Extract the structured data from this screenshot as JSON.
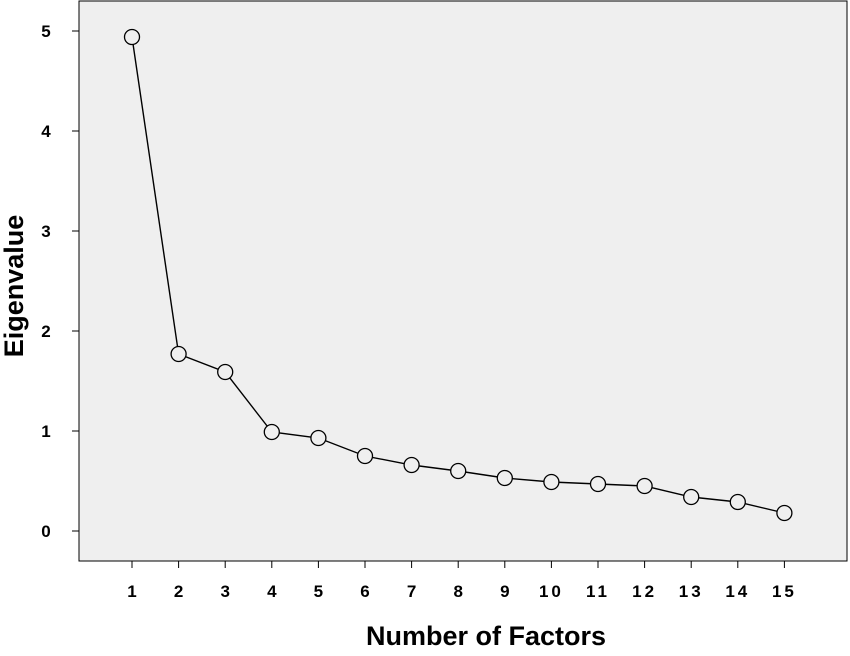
{
  "chart_data": {
    "type": "line",
    "title": "",
    "xlabel": "Number of Factors",
    "ylabel": "Eigenvalue",
    "x": [
      1,
      2,
      3,
      4,
      5,
      6,
      7,
      8,
      9,
      10,
      11,
      12,
      13,
      14,
      15
    ],
    "x_tick_labels": [
      "1",
      "2",
      "3",
      "4",
      "5",
      "6",
      "7",
      "8",
      "9",
      "10",
      "11",
      "12",
      "13",
      "14",
      "15"
    ],
    "y_ticks": [
      0,
      1,
      2,
      3,
      4,
      5
    ],
    "y_tick_labels": [
      "0",
      "1",
      "2",
      "3",
      "4",
      "5"
    ],
    "ylim": [
      -0.3,
      5.3
    ],
    "grid": false,
    "legend": "none",
    "series": [
      {
        "values": [
          4.94,
          1.77,
          1.59,
          0.99,
          0.93,
          0.75,
          0.66,
          0.6,
          0.53,
          0.49,
          0.47,
          0.45,
          0.34,
          0.29,
          0.18
        ],
        "marker": "open-circle"
      }
    ],
    "colors": {
      "plot_background": "#efefef",
      "line": "#000000",
      "marker_fill": "none",
      "frame": "#000000"
    }
  }
}
